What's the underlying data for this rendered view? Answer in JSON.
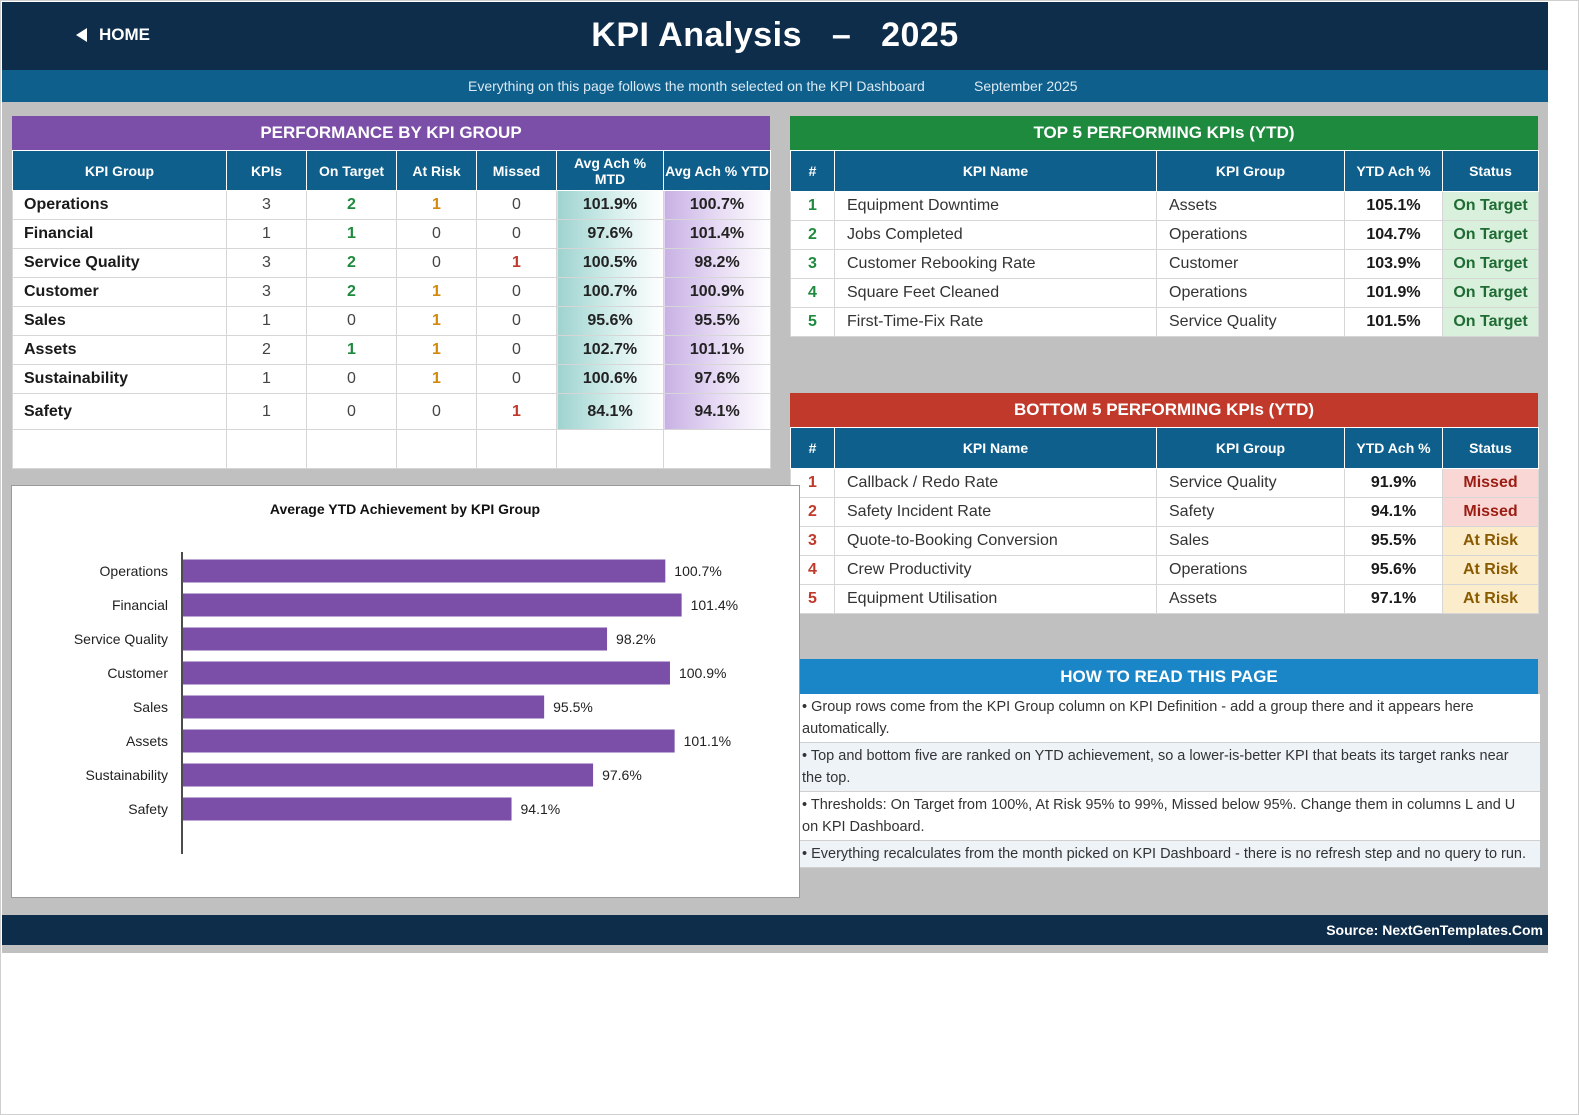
{
  "header": {
    "home_label": "HOME",
    "title": "KPI Analysis   –   2025",
    "subtitle": "Everything on this page follows the month selected on the KPI Dashboard",
    "month": "September 2025"
  },
  "performance": {
    "banner": "PERFORMANCE BY KPI GROUP",
    "columns": [
      "KPI Group",
      "KPIs",
      "On Target",
      "At Risk",
      "Missed",
      "Avg Ach % MTD",
      "Avg Ach % YTD"
    ],
    "rows": [
      {
        "group": "Operations",
        "kpis": "3",
        "on_target": "2",
        "at_risk": "1",
        "missed": "0",
        "mtd": "101.9%",
        "ytd": "100.7%"
      },
      {
        "group": "Financial",
        "kpis": "1",
        "on_target": "1",
        "at_risk": "0",
        "missed": "0",
        "mtd": "97.6%",
        "ytd": "101.4%"
      },
      {
        "group": "Service Quality",
        "kpis": "3",
        "on_target": "2",
        "at_risk": "0",
        "missed": "1",
        "mtd": "100.5%",
        "ytd": "98.2%"
      },
      {
        "group": "Customer",
        "kpis": "3",
        "on_target": "2",
        "at_risk": "1",
        "missed": "0",
        "mtd": "100.7%",
        "ytd": "100.9%"
      },
      {
        "group": "Sales",
        "kpis": "1",
        "on_target": "0",
        "at_risk": "1",
        "missed": "0",
        "mtd": "95.6%",
        "ytd": "95.5%"
      },
      {
        "group": "Assets",
        "kpis": "2",
        "on_target": "1",
        "at_risk": "1",
        "missed": "0",
        "mtd": "102.7%",
        "ytd": "101.1%"
      },
      {
        "group": "Sustainability",
        "kpis": "1",
        "on_target": "0",
        "at_risk": "1",
        "missed": "0",
        "mtd": "100.6%",
        "ytd": "97.6%"
      },
      {
        "group": "Safety",
        "kpis": "1",
        "on_target": "0",
        "at_risk": "0",
        "missed": "1",
        "mtd": "84.1%",
        "ytd": "94.1%"
      }
    ]
  },
  "top5": {
    "banner": "TOP 5 PERFORMING KPIs  (YTD)",
    "columns": [
      "#",
      "KPI Name",
      "KPI Group",
      "YTD Ach %",
      "Status"
    ],
    "rows": [
      {
        "rank": "1",
        "name": "Equipment Downtime",
        "group": "Assets",
        "ach": "105.1%",
        "status": "On Target"
      },
      {
        "rank": "2",
        "name": "Jobs Completed",
        "group": "Operations",
        "ach": "104.7%",
        "status": "On Target"
      },
      {
        "rank": "3",
        "name": "Customer Rebooking Rate",
        "group": "Customer",
        "ach": "103.9%",
        "status": "On Target"
      },
      {
        "rank": "4",
        "name": "Square Feet Cleaned",
        "group": "Operations",
        "ach": "101.9%",
        "status": "On Target"
      },
      {
        "rank": "5",
        "name": "First-Time-Fix Rate",
        "group": "Service Quality",
        "ach": "101.5%",
        "status": "On Target"
      }
    ]
  },
  "bottom5": {
    "banner": "BOTTOM 5 PERFORMING KPIs  (YTD)",
    "columns": [
      "#",
      "KPI Name",
      "KPI Group",
      "YTD Ach %",
      "Status"
    ],
    "rows": [
      {
        "rank": "1",
        "name": "Callback / Redo Rate",
        "group": "Service Quality",
        "ach": "91.9%",
        "status": "Missed"
      },
      {
        "rank": "2",
        "name": "Safety Incident Rate",
        "group": "Safety",
        "ach": "94.1%",
        "status": "Missed"
      },
      {
        "rank": "3",
        "name": "Quote-to-Booking Conversion",
        "group": "Sales",
        "ach": "95.5%",
        "status": "At Risk"
      },
      {
        "rank": "4",
        "name": "Crew Productivity",
        "group": "Operations",
        "ach": "95.6%",
        "status": "At Risk"
      },
      {
        "rank": "5",
        "name": "Equipment Utilisation",
        "group": "Assets",
        "ach": "97.1%",
        "status": "At Risk"
      }
    ]
  },
  "how_to_read": {
    "banner": "HOW TO READ THIS PAGE",
    "items": [
      "•  Group rows come from the KPI Group column on KPI Definition - add a group there and it appears here automatically.",
      "•  Top and bottom five are ranked on YTD achievement, so a lower-is-better KPI that beats its target ranks near the top.",
      "•  Thresholds: On Target from 100%, At Risk 95% to 99%, Missed below 95%. Change them in columns L and U on KPI Dashboard.",
      "•  Everything recalculates from the month picked on KPI Dashboard - there is no refresh step and no query to run."
    ]
  },
  "footer": {
    "source": "Source: NextGenTemplates.Com"
  },
  "colors": {
    "navy": "#0e2d4a",
    "blue": "#0f5f8c",
    "purple": "#7b4fa8",
    "green": "#1e8a3e",
    "red": "#c0392b",
    "light_blue": "#1a86c7"
  },
  "chart_data": {
    "type": "bar",
    "orientation": "horizontal",
    "title": "Average YTD Achievement by KPI Group",
    "categories": [
      "Operations",
      "Financial",
      "Service Quality",
      "Customer",
      "Sales",
      "Assets",
      "Sustainability",
      "Safety"
    ],
    "values": [
      100.7,
      101.4,
      98.2,
      100.9,
      95.5,
      101.1,
      97.6,
      94.1
    ],
    "value_labels": [
      "100.7%",
      "101.4%",
      "98.2%",
      "100.9%",
      "95.5%",
      "101.1%",
      "97.6%",
      "94.1%"
    ],
    "unit": "%",
    "bar_color": "#7b4fa8",
    "grid": false,
    "legend": "none"
  }
}
